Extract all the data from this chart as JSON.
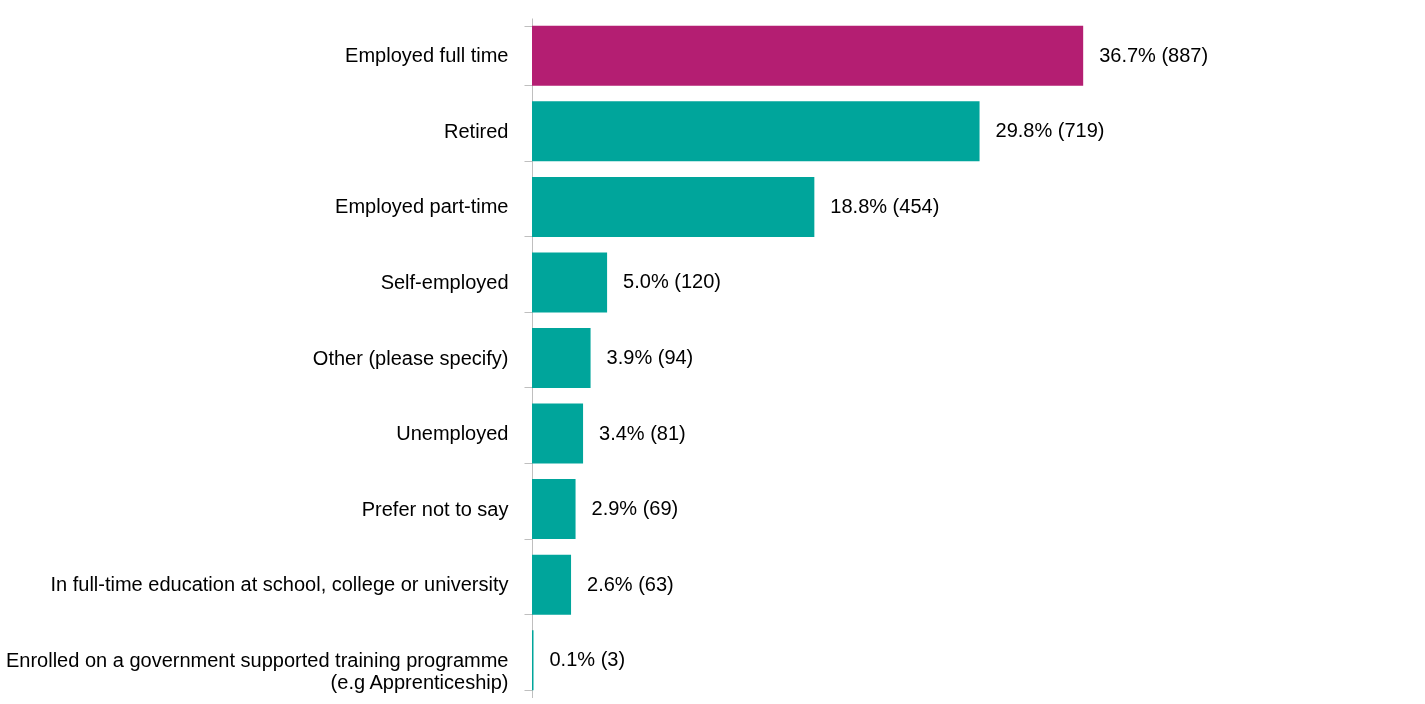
{
  "chart_data": {
    "type": "bar",
    "orientation": "horizontal",
    "categories": [
      "Employed full time",
      "Retired",
      "Employed part-time",
      "Self-employed",
      "Other (please specify)",
      "Unemployed",
      "Prefer not to say",
      "In full-time education at school, college or university",
      "Enrolled on a government supported training programme (e.g Apprenticeship)"
    ],
    "values": [
      36.7,
      29.8,
      18.8,
      5.0,
      3.9,
      3.4,
      2.9,
      2.6,
      0.1
    ],
    "colors": [
      "#b41e72",
      "#00a59b",
      "#00a59b",
      "#00a59b",
      "#00a59b",
      "#00a59b",
      "#00a59b",
      "#00a59b",
      "#00a59b"
    ],
    "value_labels": [
      "36.7% (887)",
      "29.8% (719)",
      "18.8% (454)",
      "5.0% (120)",
      "3.9% (94)",
      "3.4% (81)",
      "2.9% (69)",
      "2.6% (63)",
      "0.1% (3)"
    ]
  }
}
